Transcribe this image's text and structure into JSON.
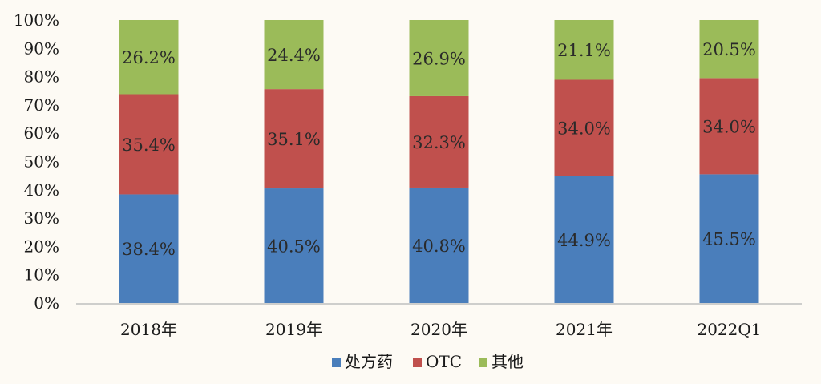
{
  "chart_data": {
    "type": "bar",
    "stacked": true,
    "categories": [
      "2018年",
      "2019年",
      "2020年",
      "2021年",
      "2022Q1"
    ],
    "series": [
      {
        "name": "处方药",
        "color": "#4a7ebb",
        "values": [
          38.4,
          40.5,
          40.8,
          44.9,
          45.5
        ],
        "labels": [
          "38.4%",
          "40.5%",
          "40.8%",
          "44.9%",
          "45.5%"
        ]
      },
      {
        "name": "OTC",
        "color": "#c0504d",
        "values": [
          35.4,
          35.1,
          32.3,
          34.0,
          34.0
        ],
        "labels": [
          "35.4%",
          "35.1%",
          "32.3%",
          "34.0%",
          "34.0%"
        ]
      },
      {
        "name": "其他",
        "color": "#9bbb59",
        "values": [
          26.2,
          24.4,
          26.9,
          21.1,
          20.5
        ],
        "labels": [
          "26.2%",
          "24.4%",
          "26.9%",
          "21.1%",
          "20.5%"
        ]
      }
    ],
    "y_ticks": [
      "0%",
      "10%",
      "20%",
      "30%",
      "40%",
      "50%",
      "60%",
      "70%",
      "80%",
      "90%",
      "100%"
    ],
    "ylim": [
      0,
      100
    ],
    "grid": false,
    "legend_position": "bottom"
  }
}
